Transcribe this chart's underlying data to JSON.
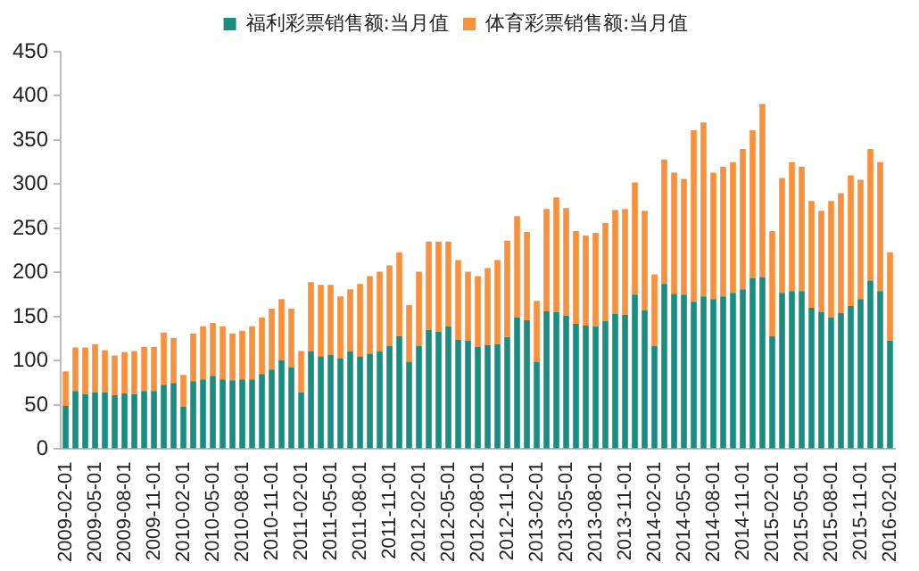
{
  "chart_data": {
    "type": "bar",
    "stacked": true,
    "legend": "top",
    "categories": [
      "2009-02-01",
      null,
      null,
      "2009-05-01",
      null,
      null,
      "2009-08-01",
      null,
      null,
      "2009-11-01",
      null,
      null,
      "2010-02-01",
      null,
      null,
      "2010-05-01",
      null,
      null,
      "2010-08-01",
      null,
      null,
      "2010-11-01",
      null,
      null,
      "2011-02-01",
      null,
      null,
      "2011-05-01",
      null,
      null,
      "2011-08-01",
      null,
      null,
      "2011-11-01",
      null,
      null,
      "2012-02-01",
      null,
      null,
      "2012-05-01",
      null,
      null,
      "2012-08-01",
      null,
      null,
      "2012-11-01",
      null,
      null,
      "2013-02-01",
      null,
      null,
      "2013-05-01",
      null,
      null,
      "2013-08-01",
      null,
      null,
      "2013-11-01",
      null,
      null,
      "2014-02-01",
      null,
      null,
      "2014-05-01",
      null,
      null,
      "2014-08-01",
      null,
      null,
      "2014-11-01",
      null,
      null,
      "2015-02-01",
      null,
      null,
      "2015-05-01",
      null,
      null,
      "2015-08-01",
      null,
      null,
      "2015-11-01",
      null,
      null,
      "2016-02-01"
    ],
    "ylim": [
      0,
      450
    ],
    "yticks": [
      0,
      50,
      100,
      150,
      200,
      250,
      300,
      350,
      400,
      450
    ],
    "series": [
      {
        "name": "福利彩票销售额:当月值",
        "color": "#1b8c80",
        "values": [
          49,
          66,
          62,
          64,
          64,
          61,
          63,
          62,
          66,
          66,
          73,
          75,
          48,
          77,
          79,
          83,
          79,
          78,
          79,
          79,
          85,
          90,
          101,
          93,
          64,
          111,
          105,
          107,
          103,
          111,
          105,
          108,
          111,
          117,
          128,
          99,
          117,
          135,
          133,
          139,
          124,
          123,
          116,
          118,
          119,
          127,
          149,
          146,
          99,
          156,
          155,
          151,
          142,
          140,
          139,
          145,
          153,
          152,
          175,
          157,
          117,
          187,
          176,
          175,
          167,
          173,
          170,
          173,
          177,
          181,
          194,
          195,
          128,
          177,
          179,
          179,
          160,
          155,
          149,
          154,
          162,
          170,
          191,
          179,
          123
        ]
      },
      {
        "name": "体育彩票销售额:当月值",
        "color": "#f7913d",
        "values": [
          39,
          49,
          53,
          55,
          48,
          45,
          47,
          49,
          50,
          50,
          59,
          51,
          36,
          54,
          60,
          60,
          60,
          53,
          55,
          60,
          64,
          69,
          69,
          66,
          47,
          78,
          81,
          79,
          70,
          70,
          82,
          88,
          90,
          91,
          95,
          64,
          84,
          100,
          102,
          96,
          90,
          78,
          80,
          87,
          95,
          109,
          115,
          100,
          69,
          116,
          130,
          122,
          105,
          102,
          106,
          111,
          118,
          120,
          127,
          113,
          81,
          141,
          137,
          131,
          194,
          197,
          143,
          147,
          148,
          159,
          167,
          196,
          119,
          130,
          146,
          141,
          121,
          115,
          132,
          136,
          148,
          135,
          149,
          146,
          100
        ]
      }
    ]
  }
}
